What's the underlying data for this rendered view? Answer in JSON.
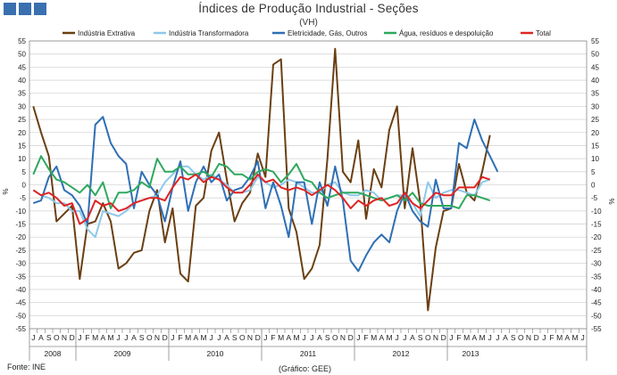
{
  "chart_data": {
    "type": "line",
    "title": "Índices de Produção Industrial - Seções",
    "subtitle": "(VH)",
    "ylabel_left": "%",
    "ylabel_right": "%",
    "ylim": [
      -55,
      55
    ],
    "yticks": [
      -55,
      -50,
      -45,
      -40,
      -35,
      -30,
      -25,
      -20,
      -15,
      -10,
      -5,
      0,
      5,
      10,
      15,
      20,
      25,
      30,
      35,
      40,
      45,
      50,
      55
    ],
    "grid": "horizontal",
    "legend_position": "top",
    "month_labels": [
      "J",
      "A",
      "S",
      "O",
      "N",
      "D",
      "J",
      "F",
      "M",
      "A",
      "M",
      "J",
      "J",
      "A",
      "S",
      "O",
      "N",
      "D",
      "J",
      "F",
      "M",
      "A",
      "M",
      "J",
      "J",
      "A",
      "S",
      "O",
      "N",
      "D",
      "J",
      "F",
      "M",
      "A",
      "M",
      "J",
      "J",
      "A",
      "S",
      "O",
      "N",
      "D",
      "J",
      "F",
      "M",
      "A",
      "M",
      "J",
      "J",
      "A",
      "S",
      "O",
      "N",
      "D",
      "J",
      "F",
      "M",
      "A",
      "M",
      "J",
      "J",
      "A",
      "S",
      "O",
      "N",
      "D",
      "J",
      "F",
      "M",
      "A",
      "M",
      "J"
    ],
    "years": [
      {
        "label": "2008",
        "start": 0,
        "count": 6
      },
      {
        "label": "2009",
        "start": 6,
        "count": 12
      },
      {
        "label": "2010",
        "start": 18,
        "count": 12
      },
      {
        "label": "2011",
        "start": 30,
        "count": 12
      },
      {
        "label": "2012",
        "start": 42,
        "count": 12
      },
      {
        "label": "2013",
        "start": 54,
        "count": 6
      }
    ],
    "series": [
      {
        "name": "Indústria Extrativa",
        "color": "#6b3f12",
        "values": [
          30,
          20,
          11,
          -14,
          -11,
          -8,
          -36,
          -15,
          -14,
          -7,
          -14,
          -32,
          -30,
          -26,
          -25,
          -10,
          -2,
          -22,
          -9,
          -34,
          -37,
          -8,
          -5,
          13,
          20,
          2,
          -14,
          -7,
          -3,
          12,
          3,
          46,
          48,
          -9,
          -18,
          -36,
          -32,
          -23,
          10,
          52,
          5,
          1,
          17,
          -13,
          6,
          -1,
          21,
          30,
          -9,
          14,
          -7,
          -48,
          -24,
          -10,
          -9,
          8,
          -3,
          -6,
          5,
          19
        ]
      },
      {
        "name": "Indústria Transformadora",
        "color": "#8dc8ea",
        "values": [
          -2,
          -4,
          -5,
          -7,
          -7,
          -10,
          -10,
          -17,
          -20,
          -10,
          -11,
          -12,
          -10,
          -7,
          -6,
          -5,
          -4,
          1,
          4,
          7,
          7,
          4,
          2,
          4,
          2,
          0,
          -3,
          -3,
          -2,
          3,
          1,
          -1,
          0,
          2,
          1,
          -1,
          -3,
          -3,
          0,
          1,
          -3,
          -4,
          -4,
          -2,
          -3,
          -6,
          -5,
          -4,
          -4,
          -7,
          -12,
          1,
          -5,
          -3,
          -2,
          -2,
          -3,
          -4,
          1,
          2
        ]
      },
      {
        "name": "Eletricidade, Gás, Outros",
        "color": "#2e6fb5",
        "values": [
          -7,
          -6,
          3,
          7,
          -2,
          -4,
          -8,
          -15,
          23,
          26,
          16,
          11,
          8,
          -9,
          5,
          0,
          -4,
          -14,
          -1,
          9,
          -10,
          1,
          7,
          1,
          4,
          -6,
          -2,
          -1,
          3,
          9,
          -9,
          1,
          -8,
          -20,
          1,
          1,
          -15,
          1,
          -8,
          7,
          -6,
          -29,
          -33,
          -27,
          -22,
          -19,
          -22,
          -10,
          -3,
          -10,
          -14,
          -16,
          2,
          -9,
          -9,
          16,
          14,
          25,
          17,
          11,
          5
        ]
      },
      {
        "name": "Água, resíduos e despoluição",
        "color": "#2fa85e",
        "values": [
          4,
          11,
          6,
          2,
          1,
          -1,
          -3,
          0,
          -4,
          1,
          -9,
          -3,
          -3,
          -2,
          1,
          -1,
          10,
          5,
          5,
          7,
          4,
          4,
          5,
          3,
          8,
          7,
          4,
          4,
          2,
          5,
          6,
          5,
          1,
          4,
          8,
          2,
          1,
          -3,
          -5,
          -4,
          -3,
          -3,
          -3,
          -4,
          -5,
          -6,
          -5,
          -4,
          -6,
          -3,
          -7,
          -8,
          -8,
          -8,
          -8,
          -9,
          -4,
          -4,
          -5,
          -6
        ]
      },
      {
        "name": "Total",
        "color": "#e02424",
        "values": [
          -2,
          -4,
          -3,
          -5,
          -8,
          -7,
          -15,
          -13,
          -6,
          -8,
          -7,
          -10,
          -9,
          -7,
          -6,
          -5,
          -5,
          -6,
          -1,
          3,
          2,
          4,
          1,
          3,
          2,
          -1,
          -3,
          -3,
          0,
          4,
          1,
          2,
          -1,
          -2,
          -1,
          -2,
          -4,
          -2,
          0,
          -2,
          -5,
          -9,
          -6,
          -8,
          -6,
          -5,
          -8,
          -7,
          -3,
          -7,
          -9,
          -6,
          -3,
          -4,
          -4,
          -1,
          -1,
          -1,
          3,
          2
        ]
      }
    ]
  },
  "footer": {
    "source": "Fonte: INE",
    "credit": "(Gráfico: GEE)"
  }
}
